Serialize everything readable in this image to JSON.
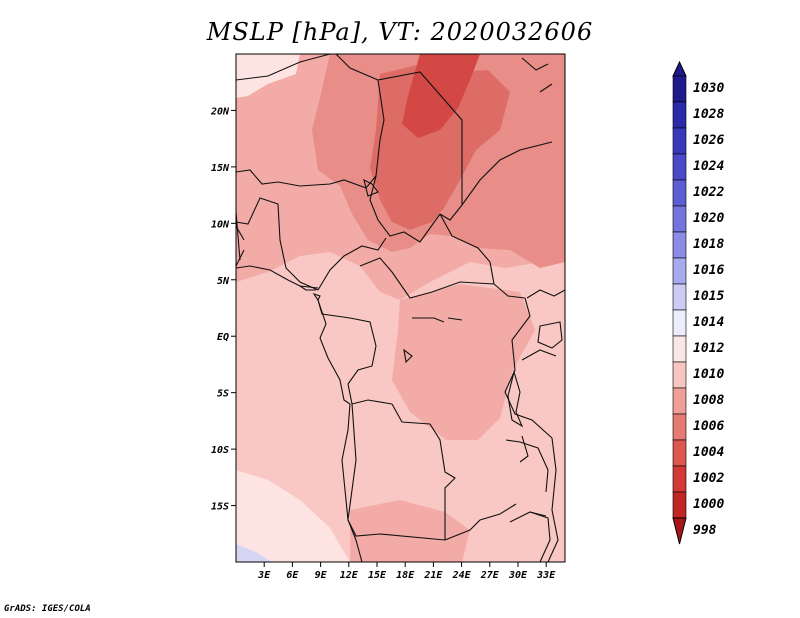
{
  "title": "MSLP [hPa], VT: 2020032606",
  "credit": "GrADS: IGES/COLA",
  "map": {
    "variable": "MSLP",
    "units": "hPa",
    "valid_time": "2020032606",
    "lon_range": [
      0,
      35
    ],
    "lat_range": [
      -20,
      25
    ],
    "lat_labels": [
      "20N",
      "15N",
      "10N",
      "5N",
      "EQ",
      "5S",
      "10S",
      "15S"
    ],
    "lat_values": [
      20,
      15,
      10,
      5,
      0,
      -5,
      -10,
      -15
    ],
    "lon_labels": [
      "3E",
      "6E",
      "9E",
      "12E",
      "15E",
      "18E",
      "21E",
      "24E",
      "27E",
      "30E",
      "33E"
    ],
    "lon_values": [
      3,
      6,
      9,
      12,
      15,
      18,
      21,
      24,
      27,
      30,
      33
    ]
  },
  "colorbar": {
    "levels": [
      "1030",
      "1028",
      "1026",
      "1024",
      "1022",
      "1020",
      "1018",
      "1016",
      "1015",
      "1014",
      "1012",
      "1010",
      "1008",
      "1006",
      "1004",
      "1002",
      "1000",
      "998"
    ],
    "colors": [
      "#1f1a8c",
      "#2b2aa8",
      "#3838bd",
      "#4a4ac9",
      "#5e5ed4",
      "#7474de",
      "#8c8ce6",
      "#a9a9ee",
      "#cbcbf4",
      "#ececfa",
      "#fbe8e6",
      "#f7c6c2",
      "#ef9f98",
      "#e67b73",
      "#dc5750",
      "#d13a35",
      "#c02622",
      "#a8151a"
    ]
  },
  "palette": {
    "p1015": "#fde4e2",
    "p1012": "#f9c8c4",
    "p1010": "#f2aba6",
    "p1008": "#e88d87",
    "p1006": "#de6c66",
    "p1004": "#d34844",
    "low_blue": "#d6d6f4"
  }
}
